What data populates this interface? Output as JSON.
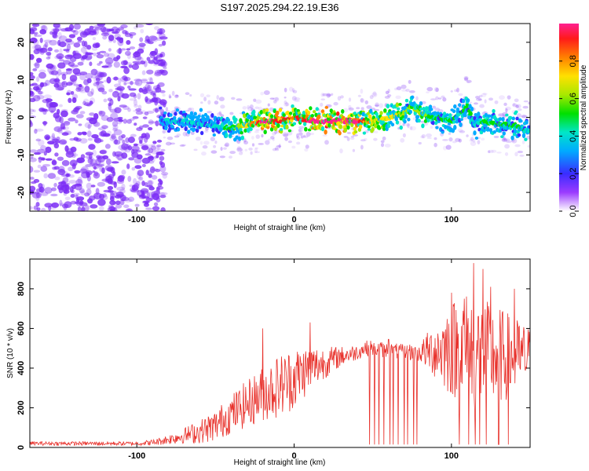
{
  "figure_title": "S197.2025.294.22.19.E36",
  "colors": {
    "snr_line": "#e8302a",
    "spectro_noise": "#7b2cf5",
    "spectro_ridge": "#ff2a1f"
  },
  "chart_data": [
    {
      "type": "heatmap",
      "title": "S197.2025.294.22.19.E36",
      "xlabel": "Height of straight line (km)",
      "ylabel": "Frequency (Hz)",
      "xlim": [
        -168,
        150
      ],
      "ylim": [
        -25,
        25
      ],
      "x_ticks": [
        -100,
        0,
        100
      ],
      "y_ticks": [
        -20,
        -10,
        0,
        10,
        20
      ],
      "colorbar": {
        "label": "Normalized spectral amplitude",
        "range": [
          0,
          1
        ],
        "ticks": [
          "0.0",
          "0.2",
          "0.4",
          "0.6",
          "0.8"
        ],
        "colormap": "rainbow"
      },
      "noise_region_x": [
        -168,
        -82
      ],
      "ridge": {
        "x": [
          -85,
          -70,
          -55,
          -40,
          -30,
          -20,
          -10,
          0,
          10,
          20,
          30,
          40,
          50,
          60,
          70,
          75,
          80,
          90,
          100,
          105,
          110,
          115,
          120,
          130,
          140,
          150
        ],
        "freq": [
          -1,
          -1,
          -2,
          -3,
          -2,
          -1,
          -1,
          0,
          -1,
          -1,
          -1,
          -1,
          -1,
          0,
          1,
          3,
          1,
          0,
          -1,
          1,
          3,
          -2,
          -1,
          -2,
          -2,
          -4
        ],
        "amplitude": [
          0.3,
          0.4,
          0.35,
          0.45,
          0.7,
          0.95,
          0.9,
          0.8,
          0.95,
          1.0,
          1.0,
          0.95,
          0.7,
          0.65,
          0.6,
          0.5,
          0.6,
          0.45,
          0.45,
          0.4,
          0.5,
          0.35,
          0.45,
          0.5,
          0.45,
          0.4
        ]
      }
    },
    {
      "type": "line",
      "xlabel": "Height of straight line (km)",
      "ylabel": "SNR (10 * v/v)",
      "xlim": [
        -168,
        150
      ],
      "ylim": [
        0,
        950
      ],
      "x_ticks": [
        -100,
        0,
        100
      ],
      "y_ticks": [
        0,
        200,
        400,
        600,
        800
      ],
      "series": [
        {
          "name": "SNR",
          "envelope_x": [
            -168,
            -140,
            -100,
            -90,
            -80,
            -70,
            -60,
            -50,
            -40,
            -30,
            -20,
            -10,
            0,
            10,
            20,
            30,
            40,
            45,
            50,
            60,
            70,
            80,
            90,
            100,
            110,
            115,
            120,
            130,
            140,
            150
          ],
          "envelope_mean": [
            20,
            20,
            20,
            25,
            40,
            60,
            80,
            110,
            170,
            220,
            270,
            310,
            350,
            400,
            430,
            460,
            480,
            500,
            500,
            490,
            480,
            480,
            490,
            500,
            490,
            480,
            470,
            460,
            460,
            460
          ],
          "envelope_spread": [
            10,
            10,
            10,
            15,
            25,
            40,
            60,
            80,
            100,
            120,
            140,
            160,
            160,
            120,
            80,
            50,
            40,
            40,
            40,
            40,
            40,
            50,
            150,
            250,
            300,
            320,
            280,
            250,
            200,
            150
          ],
          "spikes": [
            {
              "x": -20,
              "y": 600
            },
            {
              "x": 10,
              "y": 630
            },
            {
              "x": 60,
              "y": 545
            },
            {
              "x": 100,
              "y": 780
            },
            {
              "x": 108,
              "y": 750
            },
            {
              "x": 114,
              "y": 930
            },
            {
              "x": 120,
              "y": 900
            },
            {
              "x": 125,
              "y": 810
            },
            {
              "x": 140,
              "y": 800
            }
          ],
          "dropouts_x": [
            48,
            51,
            54,
            57,
            61,
            63,
            66,
            70,
            72,
            76,
            78,
            105,
            108,
            111,
            115,
            118,
            122,
            125,
            130,
            136,
            140
          ]
        }
      ]
    }
  ]
}
